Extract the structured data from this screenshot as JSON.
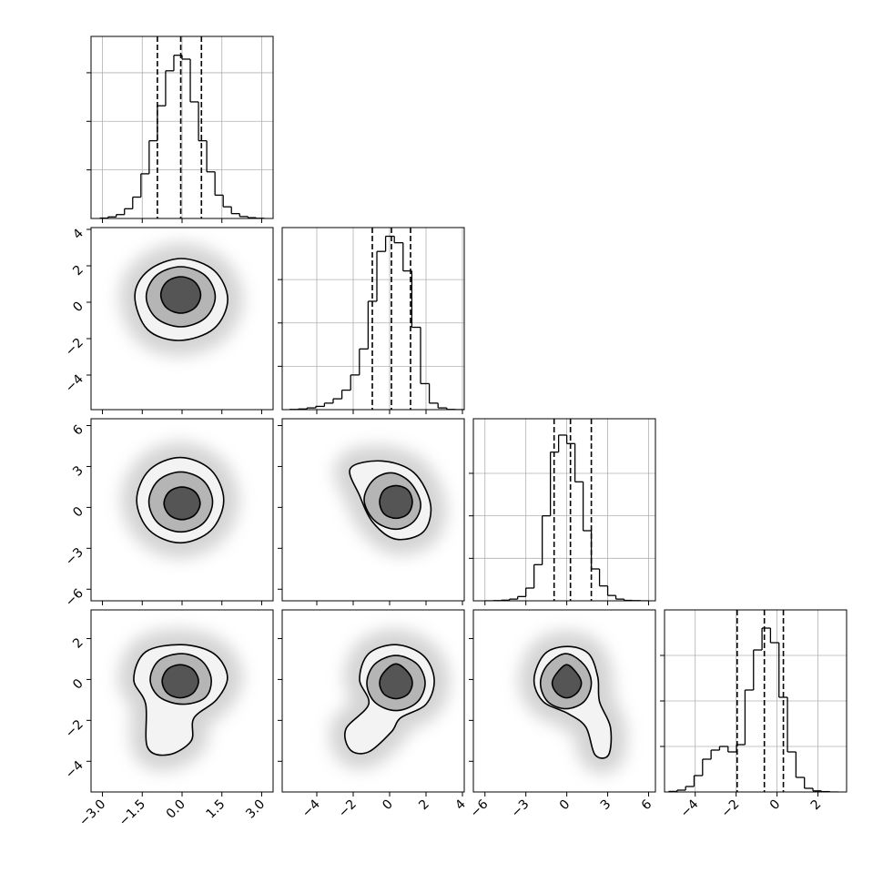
{
  "chart_data": {
    "type": "corner",
    "params": [
      {
        "lim": [
          -3.43,
          3.43
        ],
        "ticks": [
          {
            "value": -3,
            "label": "−3.0"
          },
          {
            "value": -1.5,
            "label": "−1.5"
          },
          {
            "value": 0,
            "label": "0.0"
          },
          {
            "value": 1.5,
            "label": "1.5"
          },
          {
            "value": 3,
            "label": "3.0"
          }
        ]
      },
      {
        "lim": [
          -5.9,
          4.1
        ],
        "ticks": [
          {
            "value": -4,
            "label": "−4"
          },
          {
            "value": -2,
            "label": "−2"
          },
          0,
          2,
          4
        ]
      },
      {
        "lim": [
          -6.85,
          6.5
        ],
        "ticks": [
          {
            "value": -6,
            "label": "−6"
          },
          {
            "value": -3,
            "label": "−3"
          },
          0,
          3,
          6
        ]
      },
      {
        "lim": [
          -5.5,
          3.4
        ],
        "ticks": [
          {
            "value": -4,
            "label": "−4"
          },
          {
            "value": -2,
            "label": "−2"
          },
          0,
          2
        ]
      }
    ],
    "histograms": [
      {
        "bins": [
          -3.1,
          -2.79,
          -2.48,
          -2.17,
          -1.86,
          -1.55,
          -1.24,
          -0.93,
          -0.62,
          -0.31,
          0,
          0.31,
          0.62,
          0.93,
          1.24,
          1.55,
          1.86,
          2.17,
          2.48,
          2.79,
          3.1
        ],
        "counts": [
          2,
          8,
          20,
          50,
          110,
          230,
          400,
          580,
          760,
          840,
          820,
          600,
          400,
          240,
          120,
          60,
          25,
          10,
          4,
          1
        ],
        "quantiles": [
          -0.93,
          -0.05,
          0.73
        ],
        "ylim": [
          0,
          937
        ],
        "yticks": [
          250,
          500,
          750
        ]
      },
      {
        "bins": [
          -5.5,
          -5.02,
          -4.54,
          -4.06,
          -3.58,
          -3.1,
          -2.62,
          -2.14,
          -1.66,
          -1.18,
          -0.7,
          -0.22,
          0.26,
          0.74,
          1.22,
          1.7,
          2.18,
          2.66,
          3.14,
          3.62,
          4.1
        ],
        "counts": [
          1,
          3,
          8,
          15,
          30,
          50,
          90,
          160,
          280,
          500,
          730,
          800,
          770,
          640,
          380,
          120,
          30,
          8,
          1,
          0
        ],
        "quantiles": [
          -0.95,
          0.1,
          1.15
        ],
        "ylim": [
          0,
          840
        ],
        "yticks": [
          200,
          400,
          600
        ]
      },
      {
        "bins": [
          -6,
          -5.4,
          -4.8,
          -4.2,
          -3.6,
          -3,
          -2.4,
          -1.8,
          -1.2,
          -0.6,
          0,
          0.6,
          1.2,
          1.8,
          2.4,
          3,
          3.6,
          4.2,
          4.8,
          5.4,
          6
        ],
        "counts": [
          0,
          1,
          3,
          8,
          20,
          60,
          170,
          400,
          700,
          780,
          740,
          560,
          330,
          150,
          70,
          25,
          8,
          2,
          1,
          0
        ],
        "quantiles": [
          -0.93,
          0.27,
          1.8
        ],
        "ylim": [
          0,
          857
        ],
        "yticks": [
          200,
          400,
          600
        ]
      },
      {
        "bins": [
          -5.3,
          -4.885,
          -4.47,
          -4.055,
          -3.64,
          -3.225,
          -2.81,
          -2.395,
          -1.98,
          -1.565,
          -1.15,
          -0.735,
          -0.32,
          0.095,
          0.51,
          0.925,
          1.34,
          1.755,
          2.17,
          2.585,
          3.0
        ],
        "counts": [
          3,
          10,
          30,
          90,
          180,
          230,
          250,
          220,
          260,
          560,
          780,
          900,
          820,
          520,
          220,
          80,
          20,
          6,
          2,
          0
        ],
        "quantiles": [
          -1.95,
          -0.62,
          0.31
        ],
        "ylim": [
          0,
          1000
        ],
        "yticks": [
          250,
          500,
          750
        ]
      }
    ],
    "contours": [
      {
        "row": 1,
        "col": 0,
        "levels": [
          {
            "x": [
              1.72,
              1.21,
              -0.03,
              -1.27,
              -1.78,
              -1.3,
              -0.1,
              1.2
            ],
            "y": [
              0.15,
              1.74,
              2.4,
              1.74,
              0.35,
              -1.5,
              -2.1,
              -1.45
            ]
          },
          {
            "x": [
              1.25,
              0.87,
              -0.05,
              -0.97,
              -1.35,
              -0.97,
              -0.05,
              0.87
            ],
            "y": [
              0.3,
              1.47,
              1.95,
              1.47,
              0.3,
              -0.87,
              -1.35,
              -0.87
            ]
          },
          {
            "x": [
              0.7,
              0.48,
              -0.05,
              -0.58,
              -0.8,
              -0.58,
              -0.05,
              0.48
            ],
            "y": [
              0.4,
              1.11,
              1.4,
              1.11,
              0.4,
              -0.31,
              -0.6,
              -0.31
            ]
          }
        ]
      },
      {
        "row": 2,
        "col": 0,
        "levels": [
          {
            "x": [
              1.57,
              1.09,
              -0.07,
              -1.23,
              -1.71,
              -1.23,
              -0.07,
              1.09
            ],
            "y": [
              0.53,
              2.74,
              3.66,
              2.74,
              0.53,
              -1.68,
              -2.6,
              -1.68
            ]
          },
          {
            "x": [
              1.15,
              0.8,
              -0.05,
              -0.9,
              -1.25,
              -0.9,
              -0.05,
              0.8
            ],
            "y": [
              0.4,
              1.96,
              2.6,
              1.96,
              0.4,
              -1.16,
              -1.8,
              -1.16
            ]
          },
          {
            "x": [
              0.68,
              0.48,
              0,
              -0.48,
              -0.68,
              -0.48,
              0,
              0.48
            ],
            "y": [
              0.3,
              1.15,
              1.5,
              1.15,
              0.3,
              -0.55,
              -0.9,
              -0.55
            ]
          }
        ]
      },
      {
        "row": 2,
        "col": 1,
        "levels": [
          {
            "x": [
              2.25,
              1.35,
              -0.4,
              -2.15,
              -1.65,
              -0.9,
              0.35,
              1.85
            ],
            "y": [
              0.2,
              2.53,
              3.4,
              2.87,
              0.87,
              -1.13,
              -2.33,
              -1.8
            ]
          },
          {
            "x": [
              1.7,
              1.1,
              0.1,
              -0.9,
              -1.4,
              -0.8,
              0.35,
              1.35
            ],
            "y": [
              0.33,
              1.87,
              2.53,
              2.0,
              0.53,
              -1.0,
              -1.6,
              -1.0
            ]
          },
          {
            "x": [
              1.25,
              1.0,
              0.35,
              -0.3,
              -0.55,
              -0.3,
              0.35,
              1.0
            ],
            "y": [
              0.4,
              1.27,
              1.6,
              1.27,
              0.4,
              -0.47,
              -0.8,
              -0.47
            ]
          }
        ]
      },
      {
        "row": 3,
        "col": 0,
        "levels": [
          {
            "x": [
              1.71,
              1.2,
              0,
              -1.37,
              -1.82,
              -1.37,
              -1.3,
              -0.51,
              0.34,
              0.45,
              1.3
            ],
            "y": [
              0.13,
              1.26,
              1.7,
              1.35,
              0,
              -1.21,
              -3.32,
              -3.68,
              -3.01,
              -1.88,
              -0.99
            ]
          },
          {
            "x": [
              1.1,
              0.75,
              0,
              -0.86,
              -1.2,
              -0.86,
              0,
              0.86
            ],
            "y": [
              0,
              0.9,
              1.26,
              0.94,
              0,
              -0.85,
              -1.21,
              -0.9
            ]
          },
          {
            "x": [
              0.62,
              0.41,
              -0.07,
              -0.55,
              -0.75,
              -0.55,
              -0.07,
              0.41
            ],
            "y": [
              -0.09,
              0.49,
              0.72,
              0.49,
              -0.09,
              -0.67,
              -0.9,
              -0.67
            ]
          }
        ]
      },
      {
        "row": 3,
        "col": 1,
        "levels": [
          {
            "x": [
              2.45,
              1.85,
              0.35,
              -1.15,
              -1.65,
              -1.15,
              -2.4,
              -2.15,
              -1.15,
              0.1,
              0.6,
              2.0
            ],
            "y": [
              0,
              1.17,
              1.7,
              1.26,
              0,
              -1.21,
              -2.42,
              -3.45,
              -3.54,
              -2.56,
              -1.88,
              -1.21
            ]
          },
          {
            "x": [
              1.95,
              1.5,
              0.35,
              -0.8,
              -1.25,
              -0.8,
              0.35,
              1.5
            ],
            "y": [
              -0.18,
              0.76,
              1.17,
              0.76,
              -0.18,
              -1.12,
              -1.52,
              -1.12
            ]
          },
          {
            "x": [
              1.25,
              1.0,
              0.35,
              -0.3,
              -0.55,
              -0.3,
              0.35,
              1.0
            ],
            "y": [
              -0.18,
              0.36,
              0.76,
              0.36,
              -0.18,
              -0.72,
              -0.94,
              -0.72
            ]
          }
        ]
      },
      {
        "row": 3,
        "col": 2,
        "levels": [
          {
            "x": [
              2.27,
              1.6,
              0.07,
              -1.6,
              -2.4,
              -1.73,
              0.07,
              1.4,
              2.07,
              3.07,
              3.2,
              2.4
            ],
            "y": [
              0.13,
              1.26,
              1.61,
              1.26,
              0,
              -1.08,
              -1.66,
              -2.33,
              -3.68,
              -3.68,
              -2.33,
              -1.08
            ]
          },
          {
            "x": [
              1.8,
              1.27,
              -0.07,
              -1.4,
              -1.93,
              -1.4,
              -0.07,
              1.27
            ],
            "y": [
              -0.18,
              0.72,
              1.26,
              0.72,
              -0.18,
              -1.08,
              -1.43,
              -1.08
            ]
          },
          {
            "x": [
              1.07,
              0.73,
              0,
              -0.73,
              -1.07,
              -0.73,
              0,
              0.73
            ],
            "y": [
              -0.18,
              0.31,
              0.72,
              0.31,
              -0.18,
              -0.67,
              -0.9,
              -0.67
            ]
          }
        ]
      }
    ],
    "grid": true,
    "color": "#000000",
    "shades": [
      "#f3f3f3",
      "#b5b5b5",
      "#555555"
    ]
  }
}
